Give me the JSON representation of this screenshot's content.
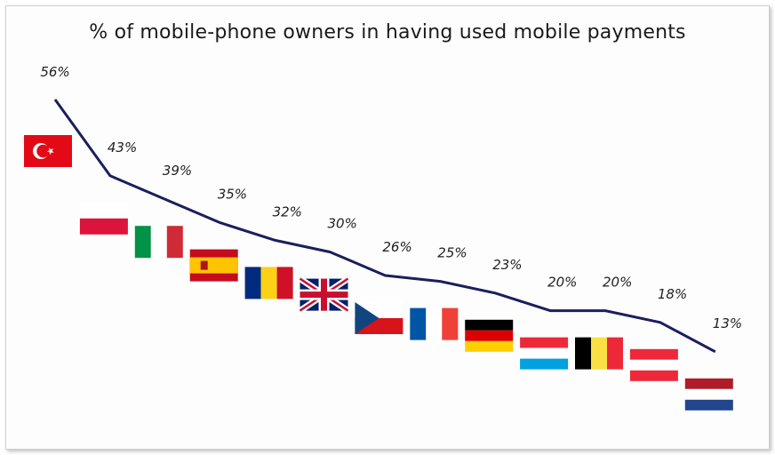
{
  "chart_data": {
    "type": "line",
    "title": "% of mobile-phone  owners in having used mobile payments",
    "xlabel": "",
    "ylabel": "",
    "ylim": [
      10,
      58
    ],
    "grid": false,
    "legend": "none",
    "line_color": "#1b1f5c",
    "categories": [
      "Turkey",
      "Poland",
      "Italy",
      "Spain",
      "Romania",
      "United Kingdom",
      "Czech Republic",
      "France",
      "Germany",
      "Luxembourg",
      "Belgium",
      "Austria",
      "Netherlands"
    ],
    "category_icons": [
      "flag-turkey-icon",
      "flag-poland-icon",
      "flag-italy-icon",
      "flag-spain-icon",
      "flag-romania-icon",
      "flag-uk-icon",
      "flag-czech-icon",
      "flag-france-icon",
      "flag-germany-icon",
      "flag-luxembourg-icon",
      "flag-belgium-icon",
      "flag-austria-icon",
      "flag-netherlands-icon"
    ],
    "values": [
      56,
      43,
      39,
      35,
      32,
      30,
      26,
      25,
      23,
      20,
      20,
      18,
      13
    ],
    "labels": [
      "56%",
      "43%",
      "39%",
      "35%",
      "32%",
      "30%",
      "26%",
      "25%",
      "23%",
      "20%",
      "20%",
      "18%",
      "13%"
    ]
  }
}
